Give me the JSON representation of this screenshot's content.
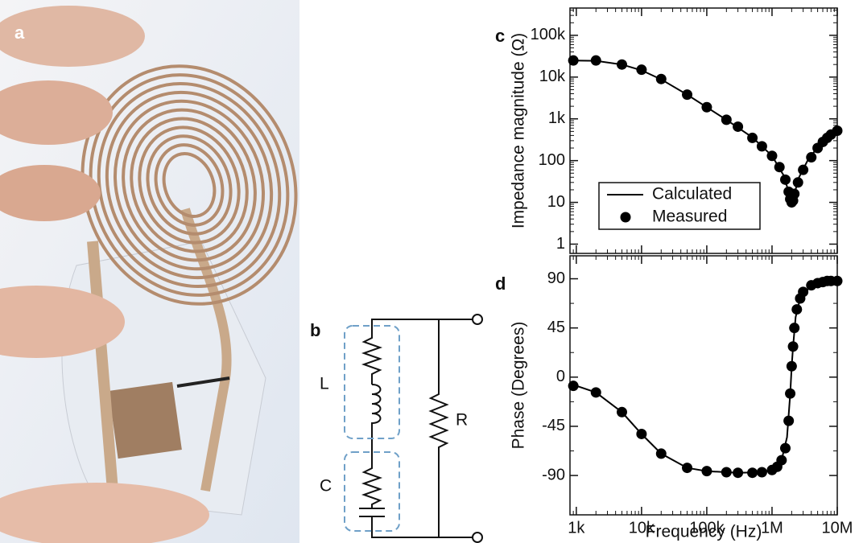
{
  "figure": {
    "panel_a": "a",
    "panel_b": "b",
    "circuit_L": "L",
    "circuit_C": "C",
    "circuit_R": "R"
  },
  "chart_data": [
    {
      "type": "line_scatter",
      "label": "c",
      "ylabel": "Impedance magnitude (Ω)",
      "xscale": "log",
      "yscale": "log",
      "xlim": [
        800,
        10000000
      ],
      "ylim": [
        0.6,
        450000
      ],
      "xticks": [
        1000,
        10000,
        100000,
        1000000,
        10000000
      ],
      "xtick_labels": false,
      "yticks": [
        1,
        10,
        100,
        {
          "value": 1000,
          "label": "1k"
        },
        {
          "value": 10000,
          "label": "10k"
        },
        {
          "value": 100000,
          "label": "100k"
        }
      ],
      "legend": "lower center",
      "series": [
        {
          "name": "Calculated",
          "kind": "line",
          "color": "#000000",
          "x": [
            900,
            2000,
            5000,
            10000,
            20000,
            50000,
            100000,
            200000,
            500000,
            1000000,
            1500000,
            1800000,
            2000000,
            2200000,
            2600000,
            3500000,
            5000000,
            7000000,
            10000000
          ],
          "values": [
            25000,
            24500,
            20000,
            14500,
            8800,
            3800,
            1900,
            950,
            360,
            130,
            45,
            18,
            10,
            16,
            40,
            100,
            210,
            360,
            540
          ]
        },
        {
          "name": "Measured",
          "kind": "scatter",
          "color": "#000000",
          "x": [
            900,
            2000,
            5000,
            10000,
            20000,
            50000,
            100000,
            200000,
            300000,
            500000,
            700000,
            1000000,
            1300000,
            1600000,
            1800000,
            1900000,
            2000000,
            2100000,
            2200000,
            2500000,
            3000000,
            4000000,
            5000000,
            6000000,
            7000000,
            8000000,
            10000000
          ],
          "values": [
            25000,
            25000,
            20000,
            15000,
            9000,
            3800,
            1900,
            950,
            650,
            350,
            220,
            130,
            70,
            35,
            18,
            12,
            10,
            11,
            16,
            30,
            60,
            120,
            200,
            280,
            350,
            420,
            520
          ]
        }
      ]
    },
    {
      "type": "line_scatter",
      "label": "d",
      "ylabel": "Phase (Degrees)",
      "xlabel": "Frequency (Hz)",
      "xscale": "log",
      "xlim": [
        800,
        10000000
      ],
      "ylim": [
        -126,
        111
      ],
      "xticks": [
        {
          "value": 1000,
          "label": "1k"
        },
        {
          "value": 10000,
          "label": "10k"
        },
        {
          "value": 100000,
          "label": "100k"
        },
        {
          "value": 1000000,
          "label": "1M"
        },
        {
          "value": 10000000,
          "label": "10M"
        }
      ],
      "yticks": [
        90,
        45,
        0,
        -45,
        -90
      ],
      "series": [
        {
          "name": "Calculated",
          "kind": "line",
          "color": "#000000",
          "x": [
            900,
            2000,
            5000,
            10000,
            20000,
            50000,
            100000,
            300000,
            700000,
            1000000,
            1400000,
            1700000,
            1900000,
            2000000,
            2100000,
            2300000,
            2700000,
            4000000,
            10000000
          ],
          "values": [
            -7,
            -14,
            -32,
            -52,
            -70,
            -83,
            -86,
            -87.5,
            -87,
            -85,
            -76,
            -55,
            -15,
            10,
            28,
            55,
            72,
            84,
            88
          ]
        },
        {
          "name": "Measured",
          "kind": "scatter",
          "color": "#000000",
          "x": [
            900,
            2000,
            5000,
            10000,
            20000,
            50000,
            100000,
            200000,
            300000,
            500000,
            700000,
            1000000,
            1200000,
            1400000,
            1600000,
            1800000,
            1900000,
            2000000,
            2100000,
            2200000,
            2400000,
            2700000,
            3000000,
            4000000,
            5000000,
            6000000,
            7000000,
            8000000,
            10000000
          ],
          "values": [
            -8,
            -14,
            -32,
            -52,
            -70,
            -83,
            -86,
            -87,
            -87.5,
            -87.5,
            -87,
            -85,
            -82,
            -76,
            -65,
            -40,
            -15,
            10,
            28,
            45,
            62,
            72,
            78,
            84,
            86,
            87,
            88,
            88,
            88
          ]
        }
      ]
    }
  ]
}
